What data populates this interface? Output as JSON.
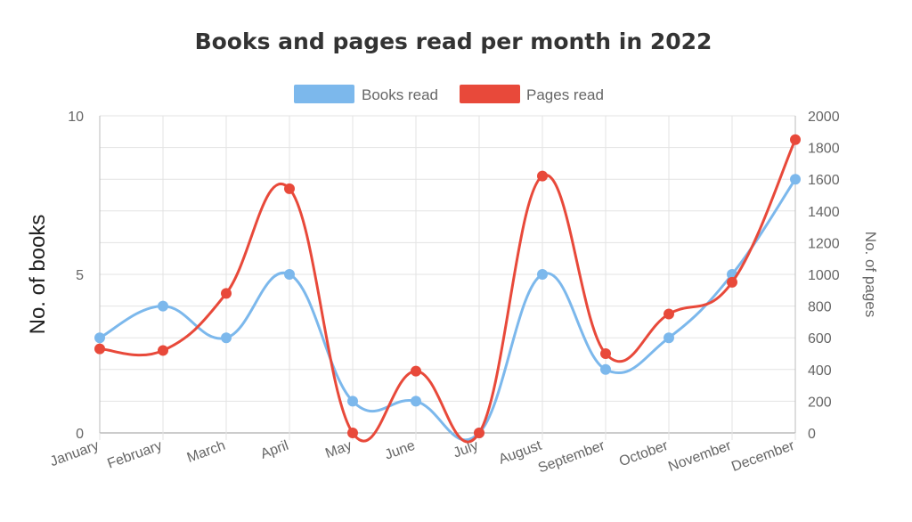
{
  "chart_data": {
    "type": "line",
    "title": "Books and pages read per month in 2022",
    "categories": [
      "January",
      "February",
      "March",
      "April",
      "May",
      "June",
      "July",
      "August",
      "September",
      "October",
      "November",
      "December"
    ],
    "series": [
      {
        "name": "Books read",
        "axis": "left",
        "color": "#7cb8ec",
        "values": [
          3,
          4,
          3,
          5,
          1,
          1,
          0,
          5,
          2,
          3,
          5,
          8
        ]
      },
      {
        "name": "Pages read",
        "axis": "right",
        "color": "#e8493a",
        "values": [
          530,
          520,
          880,
          1540,
          0,
          390,
          0,
          1620,
          500,
          750,
          950,
          1850
        ]
      }
    ],
    "y_left": {
      "label": "No. of books",
      "min": 0,
      "max": 10,
      "ticks": [
        0,
        5,
        10
      ]
    },
    "y_right": {
      "label": "No. of pages",
      "min": 0,
      "max": 2000,
      "ticks": [
        0,
        200,
        400,
        600,
        800,
        1000,
        1200,
        1400,
        1600,
        1800,
        2000
      ]
    },
    "grid": true,
    "legend_position": "top",
    "smooth": true
  }
}
